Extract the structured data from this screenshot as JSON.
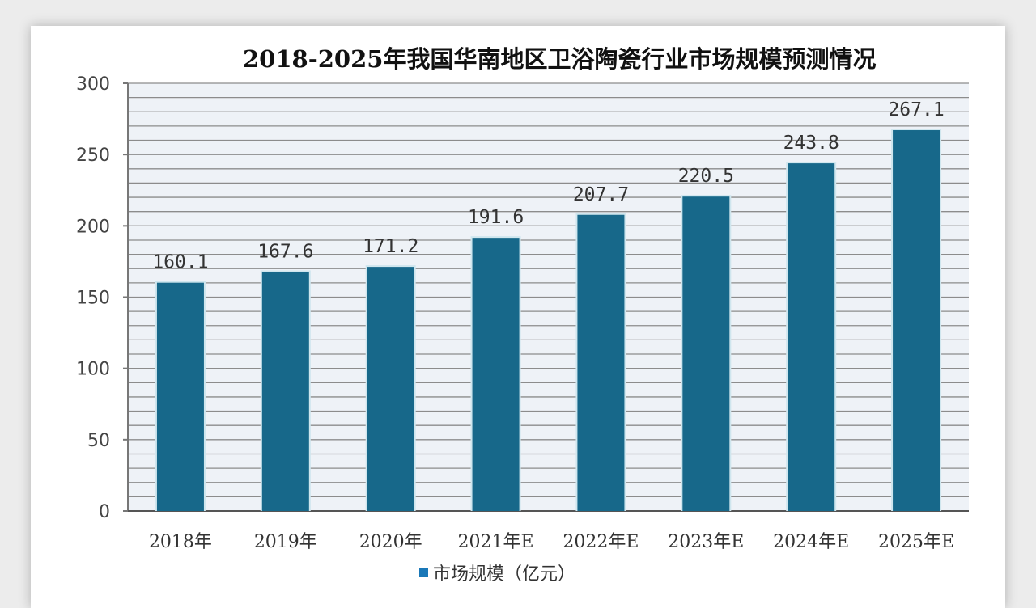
{
  "chart_data": {
    "type": "bar",
    "title": "2018-2025年我国华南地区卫浴陶瓷行业市场规模预测情况",
    "categories": [
      "2018年",
      "2019年",
      "2020年",
      "2021年E",
      "2022年E",
      "2023年E",
      "2024年E",
      "2025年E"
    ],
    "series": [
      {
        "name": "市场规模（亿元）",
        "values": [
          160.1,
          167.6,
          171.2,
          191.6,
          207.7,
          220.5,
          243.8,
          267.1
        ]
      }
    ],
    "data_labels": [
      "160.1",
      "167.6",
      "171.2",
      "191.6",
      "207.7",
      "220.5",
      "243.8",
      "267.1"
    ],
    "ylim": [
      0,
      300
    ],
    "yticks": [
      0,
      50,
      100,
      150,
      200,
      250,
      300
    ],
    "minor_grid_step": 10,
    "grid": true,
    "legend_position": "bottom",
    "colors": {
      "bar": "#17688a",
      "legend_swatch": "#1a78b8",
      "plot_bg": "#eef2f7"
    }
  }
}
